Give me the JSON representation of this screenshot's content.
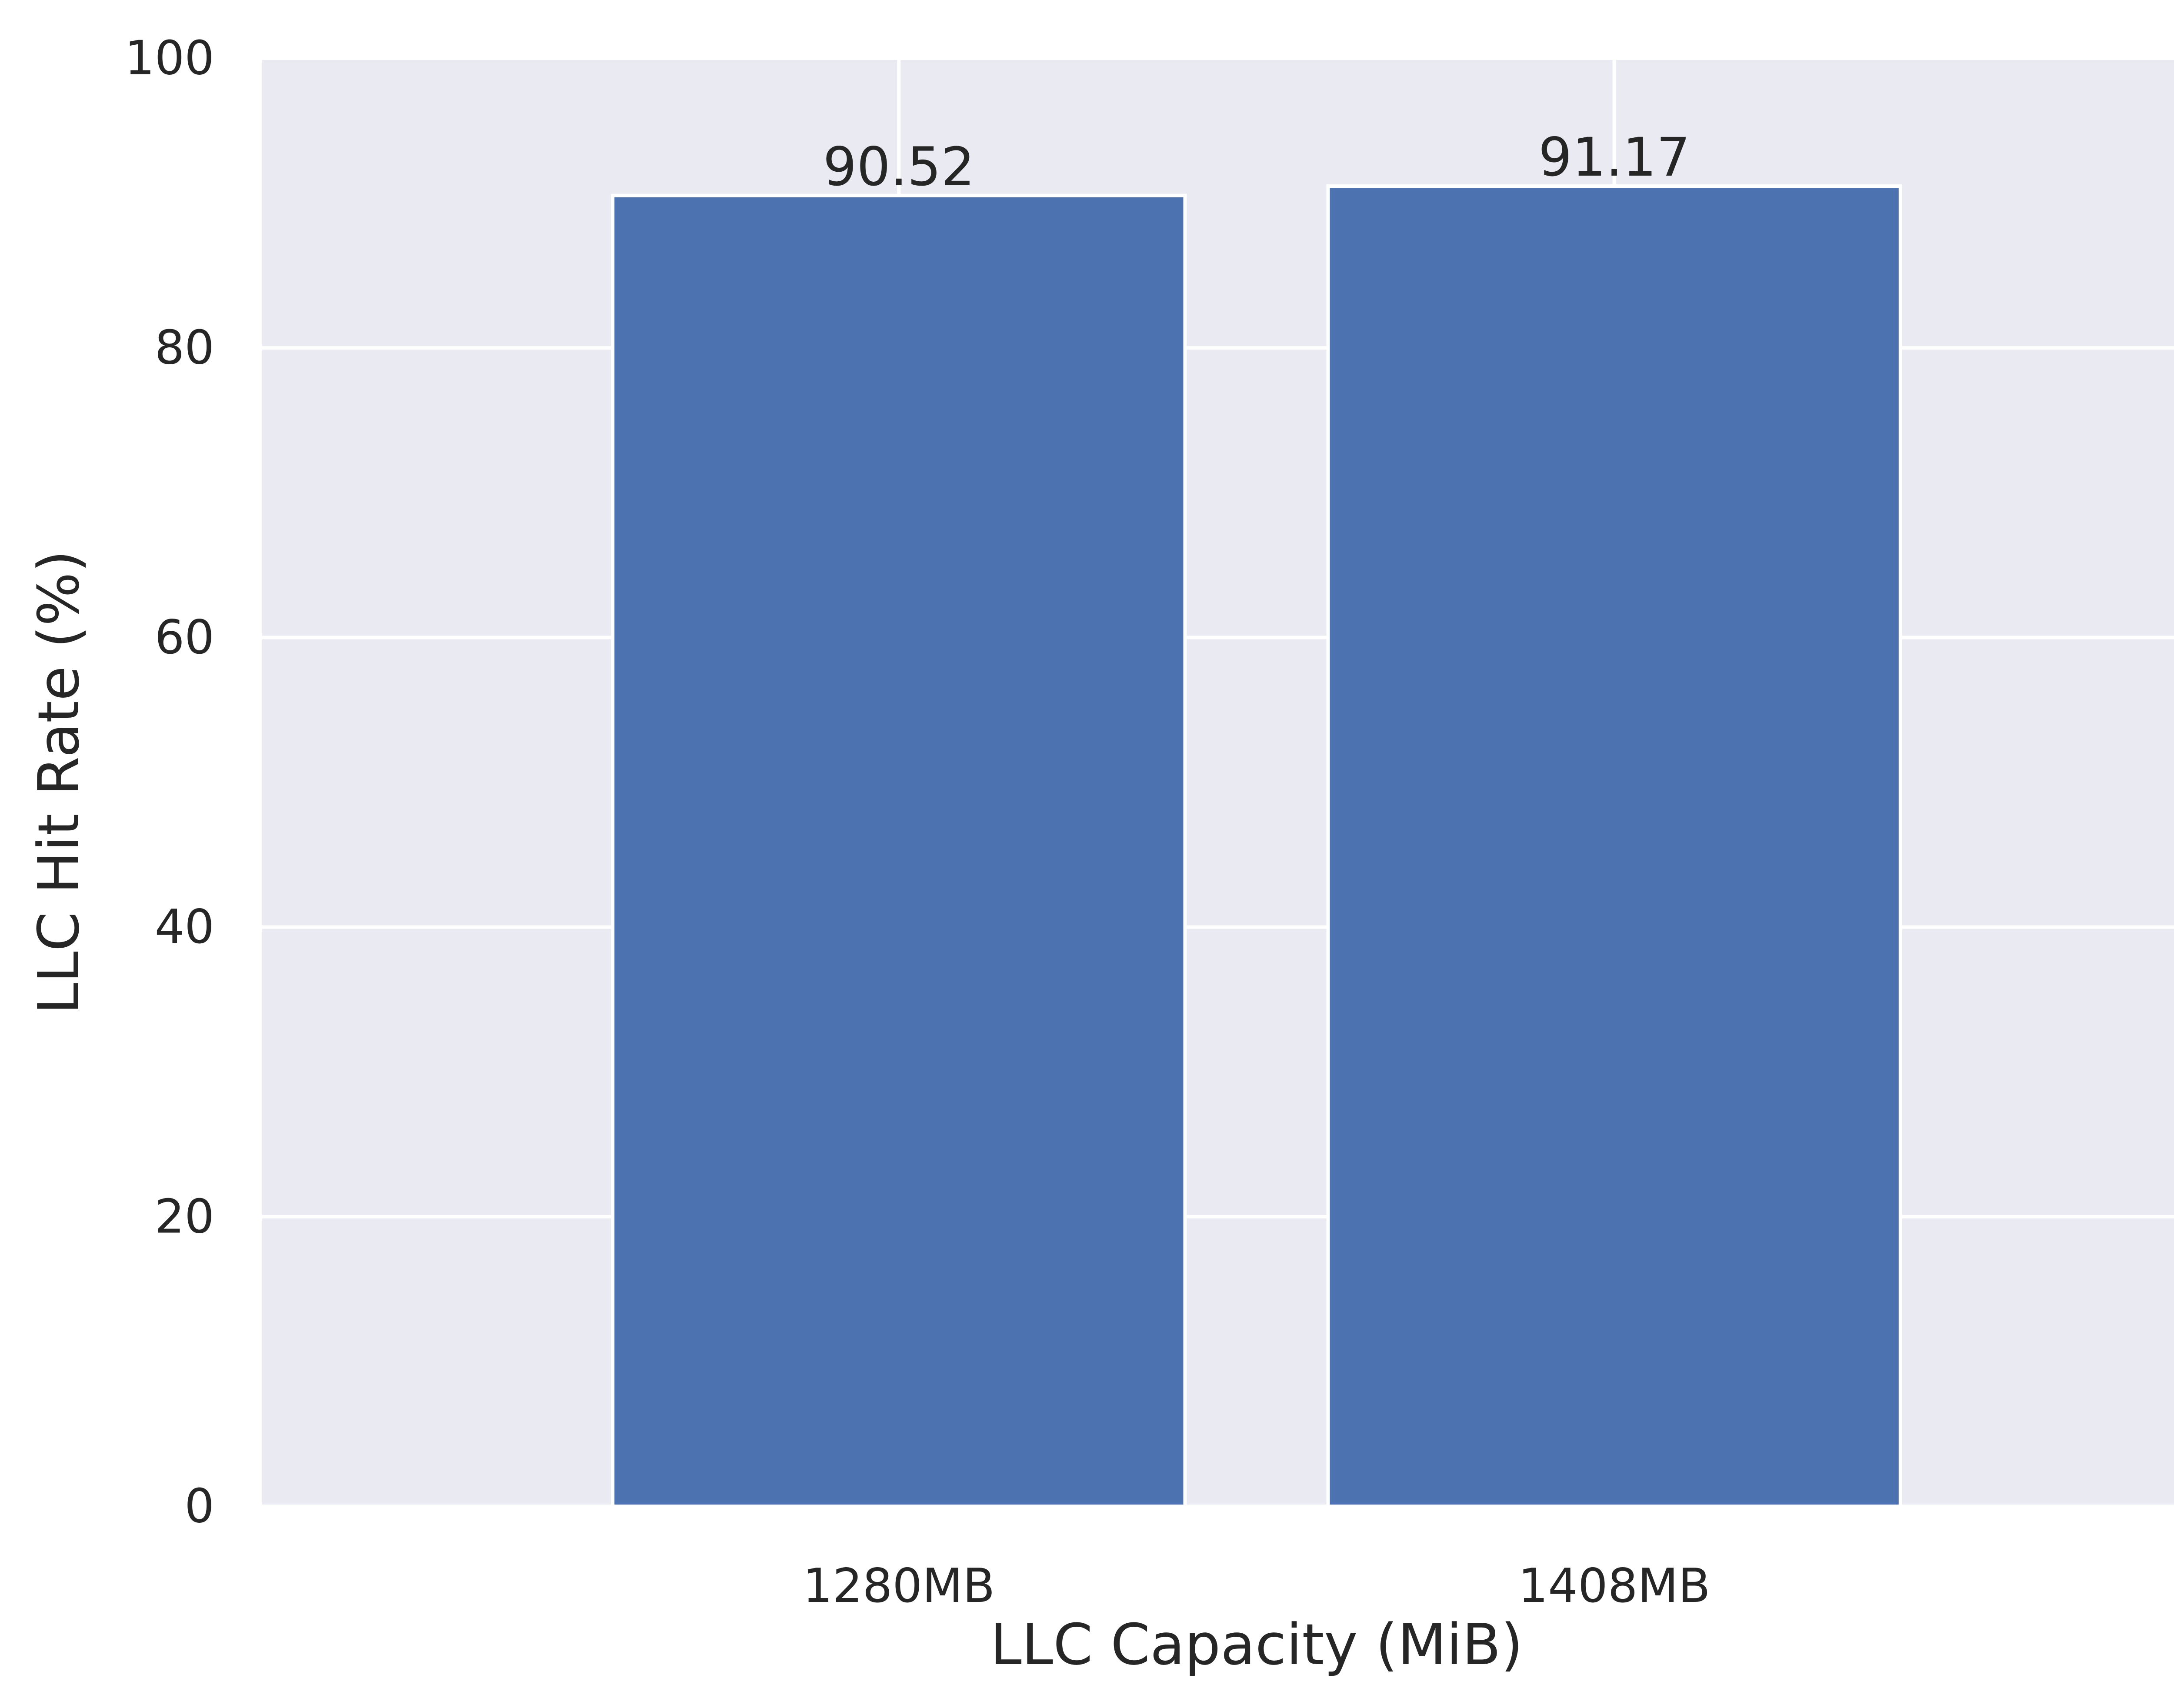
{
  "chart_data": {
    "type": "bar",
    "title": "",
    "xlabel": "LLC Capacity (MiB)",
    "ylabel": "LLC Hit Rate (%)",
    "categories": [
      "1280MB",
      "1408MB"
    ],
    "values": [
      90.52,
      91.17
    ],
    "value_labels": [
      "90.52",
      "91.17"
    ],
    "ylim": [
      0,
      100
    ],
    "yticks": [
      0,
      20,
      40,
      60,
      80,
      100
    ],
    "ytick_labels": [
      "0",
      "20",
      "40",
      "60",
      "80",
      "100"
    ],
    "grid": true,
    "legend": "none",
    "colors": {
      "bar": "#4c72b0",
      "plot_background": "#eaeaf2",
      "grid": "#ffffff",
      "text": "#262626"
    }
  }
}
